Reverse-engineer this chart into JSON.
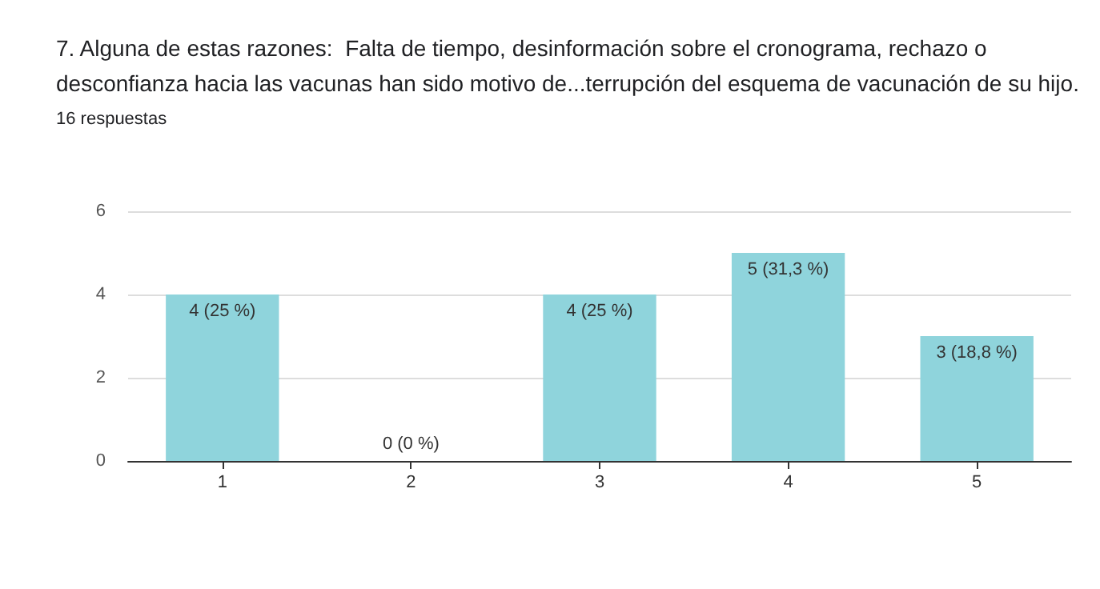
{
  "chart_data": {
    "type": "bar",
    "title": "7. Alguna de estas razones:  Falta de tiempo, desinformación sobre el cronograma, rechazo o desconfianza hacia las vacunas han sido motivo de...terrupción del esquema de vacunación de su hijo.",
    "subtitle": "16 respuestas",
    "categories": [
      "1",
      "2",
      "3",
      "4",
      "5"
    ],
    "values": [
      4,
      0,
      4,
      5,
      3
    ],
    "value_labels": [
      "4 (25 %)",
      "0 (0 %)",
      "4 (25 %)",
      "5 (31,3 %)",
      "3 (18,8 %)"
    ],
    "color": "#8fd4dc",
    "ylim": [
      0,
      6
    ],
    "yticks": [
      0,
      2,
      4,
      6
    ],
    "grid": "y"
  }
}
